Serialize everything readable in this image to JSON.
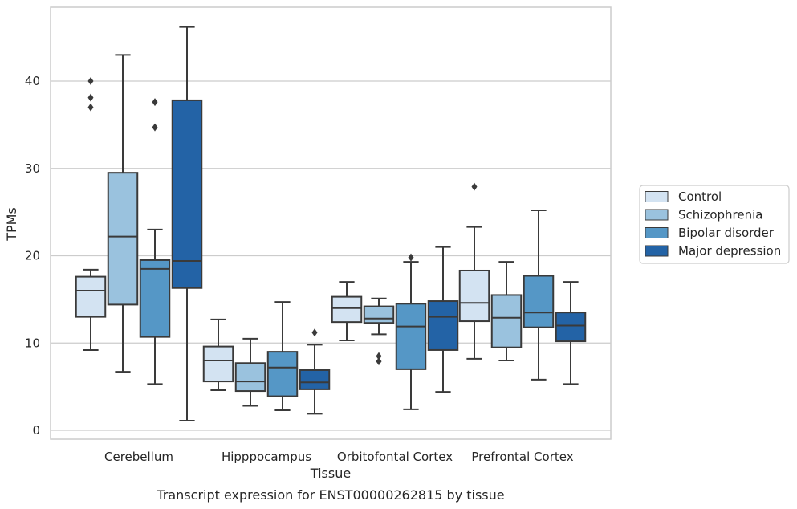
{
  "chart_data": {
    "type": "box",
    "xlabel": "Tissue",
    "ylabel": "TPMs",
    "caption": "Transcript expression for ENST00000262815 by tissue",
    "ylim": [
      -1,
      49
    ],
    "yticks": [
      0,
      10,
      20,
      30,
      40
    ],
    "grid": "horizontal",
    "legend_position": "right",
    "categories": [
      "Cerebellum",
      "Hipppocampus",
      "Orbitofontal Cortex",
      "Prefrontal Cortex"
    ],
    "series": [
      {
        "name": "Control",
        "color": "#d3e3f2",
        "boxes": [
          {
            "min": 9.2,
            "q1": 13.0,
            "median": 16.0,
            "q3": 17.6,
            "max": 18.4,
            "outliers": [
              37.0,
              38.1,
              40.0
            ]
          },
          {
            "min": 4.6,
            "q1": 5.6,
            "median": 8.0,
            "q3": 9.6,
            "max": 12.7,
            "outliers": []
          },
          {
            "min": 10.3,
            "q1": 12.4,
            "median": 14.0,
            "q3": 15.3,
            "max": 17.0,
            "outliers": []
          },
          {
            "min": 8.2,
            "q1": 12.5,
            "median": 14.6,
            "q3": 18.3,
            "max": 23.3,
            "outliers": [
              27.9
            ]
          }
        ]
      },
      {
        "name": "Schizophrenia",
        "color": "#9ac2de",
        "boxes": [
          {
            "min": 6.7,
            "q1": 14.4,
            "median": 22.2,
            "q3": 29.5,
            "max": 43.0,
            "outliers": []
          },
          {
            "min": 2.8,
            "q1": 4.5,
            "median": 5.6,
            "q3": 7.7,
            "max": 10.5,
            "outliers": []
          },
          {
            "min": 11.0,
            "q1": 12.3,
            "median": 12.8,
            "q3": 14.2,
            "max": 15.1,
            "outliers": [
              7.9,
              8.5
            ]
          },
          {
            "min": 8.0,
            "q1": 9.5,
            "median": 12.9,
            "q3": 15.5,
            "max": 19.3,
            "outliers": []
          }
        ]
      },
      {
        "name": "Bipolar disorder",
        "color": "#5597c6",
        "boxes": [
          {
            "min": 5.3,
            "q1": 10.7,
            "median": 18.5,
            "q3": 19.5,
            "max": 23.0,
            "outliers": [
              34.7,
              37.6
            ]
          },
          {
            "min": 2.3,
            "q1": 3.9,
            "median": 7.2,
            "q3": 9.0,
            "max": 14.7,
            "outliers": []
          },
          {
            "min": 2.4,
            "q1": 7.0,
            "median": 11.9,
            "q3": 14.5,
            "max": 19.3,
            "outliers": [
              19.8
            ]
          },
          {
            "min": 5.8,
            "q1": 11.8,
            "median": 13.5,
            "q3": 17.7,
            "max": 25.2,
            "outliers": []
          }
        ]
      },
      {
        "name": "Major depression",
        "color": "#2363a6",
        "boxes": [
          {
            "min": 1.1,
            "q1": 16.3,
            "median": 19.4,
            "q3": 37.8,
            "max": 46.2,
            "outliers": []
          },
          {
            "min": 1.9,
            "q1": 4.7,
            "median": 5.5,
            "q3": 6.9,
            "max": 9.8,
            "outliers": [
              11.2
            ]
          },
          {
            "min": 4.4,
            "q1": 9.2,
            "median": 13.0,
            "q3": 14.8,
            "max": 21.0,
            "outliers": []
          },
          {
            "min": 5.3,
            "q1": 10.2,
            "median": 12.0,
            "q3": 13.5,
            "max": 17.0,
            "outliers": []
          }
        ]
      }
    ]
  }
}
